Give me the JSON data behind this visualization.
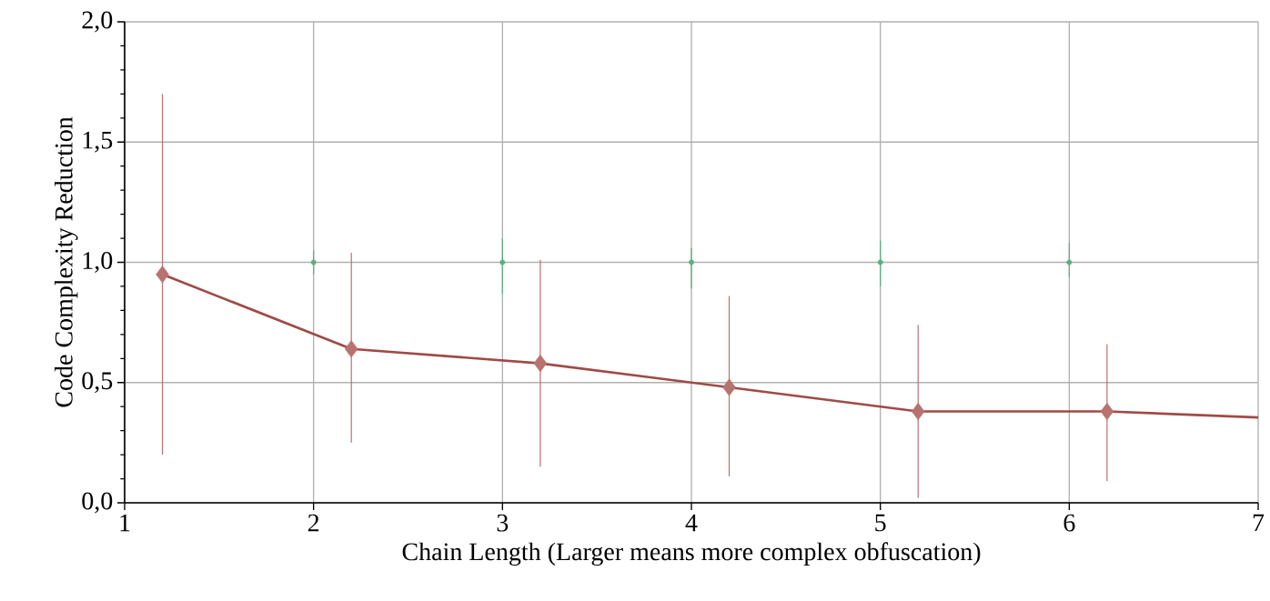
{
  "chart_data": {
    "type": "line",
    "xlabel": "Chain Length (Larger means more complex obfuscation)",
    "ylabel": "Code Complexity Reduction",
    "xlim": [
      1,
      7
    ],
    "ylim": [
      0,
      2
    ],
    "xticks": [
      1,
      2,
      3,
      4,
      5,
      6,
      7
    ],
    "yticks": [
      {
        "value": 0,
        "label": "0,0"
      },
      {
        "value": 0.5,
        "label": "0,5"
      },
      {
        "value": 1,
        "label": "1,0"
      },
      {
        "value": 1.5,
        "label": "1,5"
      },
      {
        "value": 2,
        "label": "2,0"
      }
    ],
    "grid": true,
    "series": [
      {
        "marker": "none",
        "color": "#9e4b47",
        "x": [
          1.2,
          2.2,
          3.2,
          4.2,
          5.2,
          6.2,
          7
        ],
        "values": [
          0.95,
          0.64,
          0.58,
          0.48,
          0.38,
          0.38,
          0.355
        ]
      },
      {
        "type": "scatter",
        "marker": "diamond",
        "color": "#b8726f",
        "x": [
          1.2,
          2.2,
          3.2,
          4.2,
          5.2,
          6.2
        ],
        "values": [
          0.95,
          0.64,
          0.58,
          0.48,
          0.38,
          0.38
        ],
        "errors": [
          [
            0.2,
            1.7
          ],
          [
            0.25,
            1.04
          ],
          [
            0.15,
            1.01
          ],
          [
            0.11,
            0.86
          ],
          [
            0.02,
            0.74
          ],
          [
            0.09,
            0.66
          ]
        ]
      },
      {
        "type": "scatter",
        "marker": "none",
        "color": "#5bb07f",
        "x": [
          2,
          3,
          4,
          5,
          6
        ],
        "values": [
          1.0,
          1.0,
          1.0,
          1.0,
          1.0
        ],
        "errors": [
          [
            0.95,
            1.05
          ],
          [
            0.87,
            1.1
          ],
          [
            0.89,
            1.06
          ],
          [
            0.9,
            1.09
          ],
          [
            0.94,
            1.08
          ]
        ]
      }
    ]
  }
}
